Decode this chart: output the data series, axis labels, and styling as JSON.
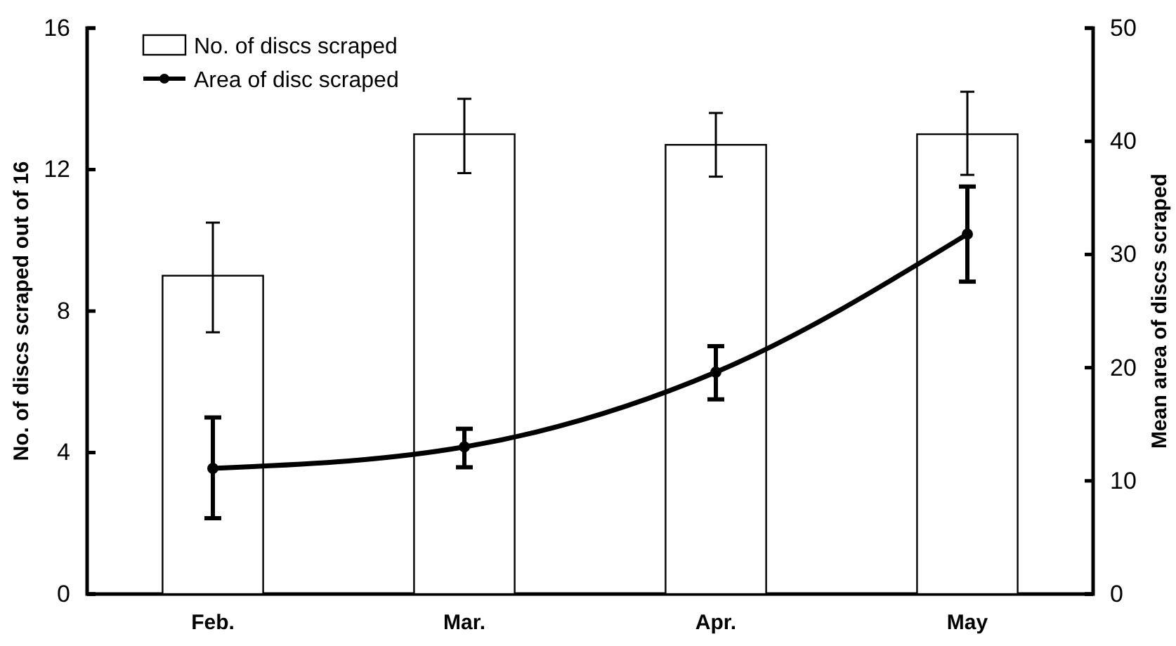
{
  "chart_data": {
    "type": "bar",
    "categories": [
      "Feb.",
      "Mar.",
      "Apr.",
      "May"
    ],
    "ylabel": "No. of discs scraped out of 16",
    "y2label": "Mean area of discs scraped",
    "ylim": [
      0,
      16
    ],
    "yticks": [
      0,
      4,
      8,
      12,
      16
    ],
    "y2lim": [
      0,
      50
    ],
    "y2ticks": [
      0,
      10,
      20,
      30,
      40,
      50
    ],
    "legend": "top left",
    "marker": "circle",
    "series": [
      {
        "name": "No. of discs scraped",
        "color": "#ffffff",
        "values": [
          9.0,
          13.0,
          12.7,
          13.0
        ],
        "errors": [
          [
            7.4,
            10.5
          ],
          [
            11.9,
            14.0
          ],
          [
            11.8,
            13.6
          ],
          [
            11.85,
            14.2
          ]
        ]
      },
      {
        "name": "Area of disc scraped",
        "type": "line",
        "axis": "y2",
        "color": "#000000",
        "values": [
          11.1,
          13.0,
          19.6,
          31.8
        ],
        "errors": [
          [
            6.7,
            15.6
          ],
          [
            11.2,
            14.6
          ],
          [
            17.2,
            21.9
          ],
          [
            27.6,
            36.0
          ]
        ]
      }
    ]
  }
}
